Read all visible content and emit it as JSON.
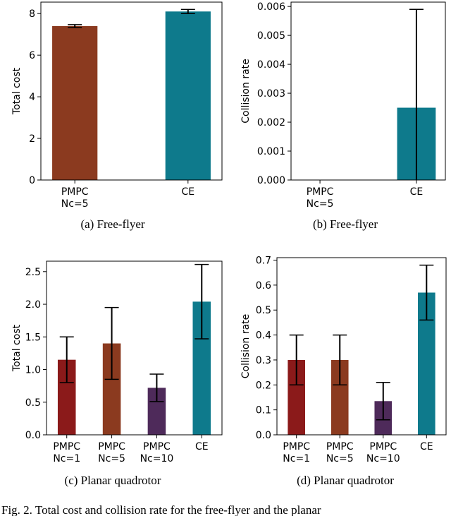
{
  "chart_data": [
    {
      "type": "bar",
      "ylabel": "Total cost",
      "caption": "(a)  Free-flyer",
      "categories": [
        [
          "PMPC",
          "Nc=5"
        ],
        "CE"
      ],
      "series": [
        {
          "colors": [
            "#8b3a1f",
            "#0e7a8c"
          ],
          "values": [
            7.4,
            8.1
          ],
          "errors": [
            0.07,
            0.1
          ]
        }
      ],
      "ylim": [
        0,
        8.55
      ],
      "yticks": [
        0,
        2,
        4,
        6,
        8
      ]
    },
    {
      "type": "bar",
      "ylabel": "Collision rate",
      "caption": "(b)  Free-flyer",
      "categories": [
        [
          "PMPC",
          "Nc=5"
        ],
        "CE"
      ],
      "series": [
        {
          "colors": [
            "#8b3a1f",
            "#0e7a8c"
          ],
          "values": [
            0,
            0.0025
          ],
          "errors": [
            0,
            0.0034
          ]
        }
      ],
      "ylim": [
        0,
        0.00615
      ],
      "yticks": [
        {
          "value": 0,
          "label": "0.000"
        },
        {
          "value": 0.001,
          "label": "0.001"
        },
        {
          "value": 0.002,
          "label": "0.002"
        },
        {
          "value": 0.003,
          "label": "0.003"
        },
        {
          "value": 0.004,
          "label": "0.004"
        },
        {
          "value": 0.005,
          "label": "0.005"
        },
        {
          "value": 0.006,
          "label": "0.006"
        }
      ]
    },
    {
      "type": "bar",
      "ylabel": "Total cost",
      "caption": "(c)  Planar quadrotor",
      "categories": [
        [
          "PMPC",
          "Nc=1"
        ],
        [
          "PMPC",
          "Nc=5"
        ],
        [
          "PMPC",
          "Nc=10"
        ],
        "CE"
      ],
      "series": [
        {
          "colors": [
            "#8b1a1a",
            "#8b3a1f",
            "#4e2a5a",
            "#0e7a8c"
          ],
          "values": [
            1.15,
            1.4,
            0.72,
            2.04
          ],
          "errors": [
            0.35,
            0.55,
            0.21,
            0.57
          ]
        }
      ],
      "ylim": [
        0,
        2.66
      ],
      "yticks": [
        {
          "value": 0,
          "label": "0.0"
        },
        0.5,
        {
          "value": 1,
          "label": "1.0"
        },
        1.5,
        {
          "value": 2,
          "label": "2.0"
        },
        2.5
      ]
    },
    {
      "type": "bar",
      "ylabel": "Collision rate",
      "caption": "(d)  Planar quadrotor",
      "categories": [
        [
          "PMPC",
          "Nc=1"
        ],
        [
          "PMPC",
          "Nc=5"
        ],
        [
          "PMPC",
          "Nc=10"
        ],
        "CE"
      ],
      "series": [
        {
          "colors": [
            "#8b1a1a",
            "#8b3a1f",
            "#4e2a5a",
            "#0e7a8c"
          ],
          "values": [
            0.3,
            0.3,
            0.135,
            0.57
          ],
          "errors": [
            0.1,
            0.1,
            0.075,
            0.11
          ]
        }
      ],
      "ylim": [
        0,
        0.71
      ],
      "yticks": [
        {
          "value": 0,
          "label": "0.0"
        },
        0.1,
        0.2,
        0.3,
        0.4,
        0.5,
        0.6,
        0.7
      ]
    }
  ],
  "figure_caption": "Fig. 2.    Total cost and collision rate for the free-flyer and the planar"
}
